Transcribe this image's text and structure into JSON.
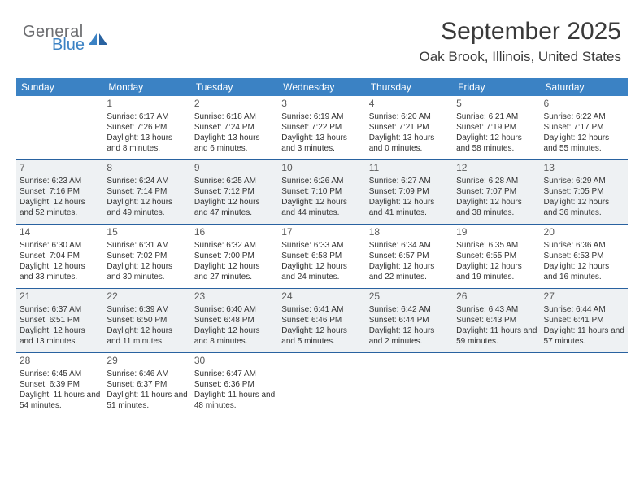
{
  "brand": {
    "line1": "General",
    "line2": "Blue"
  },
  "header": {
    "title": "September 2025",
    "location": "Oak Brook, Illinois, United States"
  },
  "colors": {
    "header_bar": "#3b82c4",
    "rule": "#2962a0",
    "shaded_cell": "#eef1f3",
    "text": "#333333"
  },
  "days_of_week": [
    "Sunday",
    "Monday",
    "Tuesday",
    "Wednesday",
    "Thursday",
    "Friday",
    "Saturday"
  ],
  "weeks": [
    [
      {
        "num": "",
        "sunrise": "",
        "sunset": "",
        "daylight": ""
      },
      {
        "num": "1",
        "sunrise": "Sunrise: 6:17 AM",
        "sunset": "Sunset: 7:26 PM",
        "daylight": "Daylight: 13 hours and 8 minutes."
      },
      {
        "num": "2",
        "sunrise": "Sunrise: 6:18 AM",
        "sunset": "Sunset: 7:24 PM",
        "daylight": "Daylight: 13 hours and 6 minutes."
      },
      {
        "num": "3",
        "sunrise": "Sunrise: 6:19 AM",
        "sunset": "Sunset: 7:22 PM",
        "daylight": "Daylight: 13 hours and 3 minutes."
      },
      {
        "num": "4",
        "sunrise": "Sunrise: 6:20 AM",
        "sunset": "Sunset: 7:21 PM",
        "daylight": "Daylight: 13 hours and 0 minutes."
      },
      {
        "num": "5",
        "sunrise": "Sunrise: 6:21 AM",
        "sunset": "Sunset: 7:19 PM",
        "daylight": "Daylight: 12 hours and 58 minutes."
      },
      {
        "num": "6",
        "sunrise": "Sunrise: 6:22 AM",
        "sunset": "Sunset: 7:17 PM",
        "daylight": "Daylight: 12 hours and 55 minutes."
      }
    ],
    [
      {
        "num": "7",
        "sunrise": "Sunrise: 6:23 AM",
        "sunset": "Sunset: 7:16 PM",
        "daylight": "Daylight: 12 hours and 52 minutes."
      },
      {
        "num": "8",
        "sunrise": "Sunrise: 6:24 AM",
        "sunset": "Sunset: 7:14 PM",
        "daylight": "Daylight: 12 hours and 49 minutes."
      },
      {
        "num": "9",
        "sunrise": "Sunrise: 6:25 AM",
        "sunset": "Sunset: 7:12 PM",
        "daylight": "Daylight: 12 hours and 47 minutes."
      },
      {
        "num": "10",
        "sunrise": "Sunrise: 6:26 AM",
        "sunset": "Sunset: 7:10 PM",
        "daylight": "Daylight: 12 hours and 44 minutes."
      },
      {
        "num": "11",
        "sunrise": "Sunrise: 6:27 AM",
        "sunset": "Sunset: 7:09 PM",
        "daylight": "Daylight: 12 hours and 41 minutes."
      },
      {
        "num": "12",
        "sunrise": "Sunrise: 6:28 AM",
        "sunset": "Sunset: 7:07 PM",
        "daylight": "Daylight: 12 hours and 38 minutes."
      },
      {
        "num": "13",
        "sunrise": "Sunrise: 6:29 AM",
        "sunset": "Sunset: 7:05 PM",
        "daylight": "Daylight: 12 hours and 36 minutes."
      }
    ],
    [
      {
        "num": "14",
        "sunrise": "Sunrise: 6:30 AM",
        "sunset": "Sunset: 7:04 PM",
        "daylight": "Daylight: 12 hours and 33 minutes."
      },
      {
        "num": "15",
        "sunrise": "Sunrise: 6:31 AM",
        "sunset": "Sunset: 7:02 PM",
        "daylight": "Daylight: 12 hours and 30 minutes."
      },
      {
        "num": "16",
        "sunrise": "Sunrise: 6:32 AM",
        "sunset": "Sunset: 7:00 PM",
        "daylight": "Daylight: 12 hours and 27 minutes."
      },
      {
        "num": "17",
        "sunrise": "Sunrise: 6:33 AM",
        "sunset": "Sunset: 6:58 PM",
        "daylight": "Daylight: 12 hours and 24 minutes."
      },
      {
        "num": "18",
        "sunrise": "Sunrise: 6:34 AM",
        "sunset": "Sunset: 6:57 PM",
        "daylight": "Daylight: 12 hours and 22 minutes."
      },
      {
        "num": "19",
        "sunrise": "Sunrise: 6:35 AM",
        "sunset": "Sunset: 6:55 PM",
        "daylight": "Daylight: 12 hours and 19 minutes."
      },
      {
        "num": "20",
        "sunrise": "Sunrise: 6:36 AM",
        "sunset": "Sunset: 6:53 PM",
        "daylight": "Daylight: 12 hours and 16 minutes."
      }
    ],
    [
      {
        "num": "21",
        "sunrise": "Sunrise: 6:37 AM",
        "sunset": "Sunset: 6:51 PM",
        "daylight": "Daylight: 12 hours and 13 minutes."
      },
      {
        "num": "22",
        "sunrise": "Sunrise: 6:39 AM",
        "sunset": "Sunset: 6:50 PM",
        "daylight": "Daylight: 12 hours and 11 minutes."
      },
      {
        "num": "23",
        "sunrise": "Sunrise: 6:40 AM",
        "sunset": "Sunset: 6:48 PM",
        "daylight": "Daylight: 12 hours and 8 minutes."
      },
      {
        "num": "24",
        "sunrise": "Sunrise: 6:41 AM",
        "sunset": "Sunset: 6:46 PM",
        "daylight": "Daylight: 12 hours and 5 minutes."
      },
      {
        "num": "25",
        "sunrise": "Sunrise: 6:42 AM",
        "sunset": "Sunset: 6:44 PM",
        "daylight": "Daylight: 12 hours and 2 minutes."
      },
      {
        "num": "26",
        "sunrise": "Sunrise: 6:43 AM",
        "sunset": "Sunset: 6:43 PM",
        "daylight": "Daylight: 11 hours and 59 minutes."
      },
      {
        "num": "27",
        "sunrise": "Sunrise: 6:44 AM",
        "sunset": "Sunset: 6:41 PM",
        "daylight": "Daylight: 11 hours and 57 minutes."
      }
    ],
    [
      {
        "num": "28",
        "sunrise": "Sunrise: 6:45 AM",
        "sunset": "Sunset: 6:39 PM",
        "daylight": "Daylight: 11 hours and 54 minutes."
      },
      {
        "num": "29",
        "sunrise": "Sunrise: 6:46 AM",
        "sunset": "Sunset: 6:37 PM",
        "daylight": "Daylight: 11 hours and 51 minutes."
      },
      {
        "num": "30",
        "sunrise": "Sunrise: 6:47 AM",
        "sunset": "Sunset: 6:36 PM",
        "daylight": "Daylight: 11 hours and 48 minutes."
      },
      {
        "num": "",
        "sunrise": "",
        "sunset": "",
        "daylight": ""
      },
      {
        "num": "",
        "sunrise": "",
        "sunset": "",
        "daylight": ""
      },
      {
        "num": "",
        "sunrise": "",
        "sunset": "",
        "daylight": ""
      },
      {
        "num": "",
        "sunrise": "",
        "sunset": "",
        "daylight": ""
      }
    ]
  ],
  "shading": {
    "alternating_start": 0
  }
}
